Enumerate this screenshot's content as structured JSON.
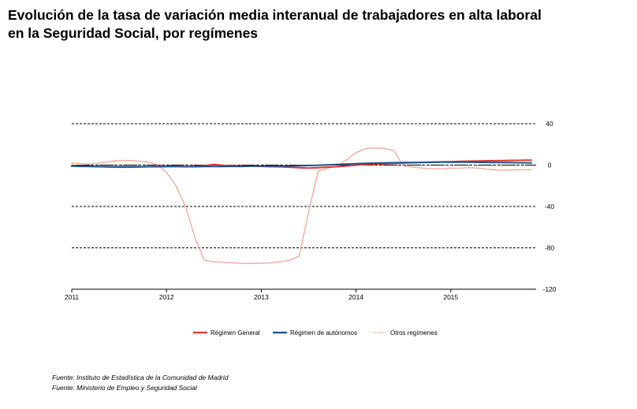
{
  "title_lines": [
    "Evolución de la tasa de variación media interanual de trabajadores en alta laboral",
    "en la Seguridad Social, por  regímenes"
  ],
  "sources": [
    "Fuente: Instituto de Estadística de la Comunidad de Madrid",
    "Fuente: Ministerio de Empleo y Seguridad Social"
  ],
  "chart_data": {
    "type": "line",
    "title": "",
    "xlabel": "",
    "ylabel": "",
    "x_tick_labels": [
      "2011",
      "2012",
      "2013",
      "2014",
      "2015"
    ],
    "x_range": [
      2011.0,
      2015.9
    ],
    "y_ticks": [
      40,
      0,
      -40,
      -80,
      -120
    ],
    "ylim": [
      -120,
      40
    ],
    "grid": "dashed horizontal",
    "legend_position": "bottom",
    "x": [
      2011.0,
      2011.1,
      2011.2,
      2011.3,
      2011.4,
      2011.5,
      2011.6,
      2011.7,
      2011.8,
      2011.9,
      2012.0,
      2012.1,
      2012.2,
      2012.3,
      2012.4,
      2012.5,
      2012.6,
      2012.7,
      2012.8,
      2012.9,
      2013.0,
      2013.1,
      2013.2,
      2013.3,
      2013.4,
      2013.5,
      2013.6,
      2013.7,
      2013.8,
      2013.9,
      2014.0,
      2014.1,
      2014.2,
      2014.3,
      2014.4,
      2014.5,
      2014.6,
      2014.7,
      2014.8,
      2014.9,
      2015.0,
      2015.1,
      2015.2,
      2015.3,
      2015.4,
      2015.5,
      2015.6,
      2015.7,
      2015.8,
      2015.85
    ],
    "series": [
      {
        "name": "Régimen General",
        "color": "#d9382e",
        "style": "solid",
        "values": [
          -0.5,
          -0.8,
          -1.2,
          -1.5,
          -1.8,
          -2.0,
          -2.0,
          -1.8,
          -1.5,
          -1.4,
          -1.3,
          -1.4,
          -1.5,
          -1.2,
          -0.5,
          0.5,
          -0.3,
          -0.5,
          -0.8,
          -1.0,
          -1.2,
          -1.5,
          -1.6,
          -2.0,
          -2.5,
          -2.8,
          -2.5,
          -2.0,
          -1.5,
          -0.8,
          0.0,
          0.5,
          1.0,
          1.3,
          1.7,
          2.0,
          2.3,
          2.6,
          2.9,
          3.1,
          3.3,
          3.6,
          3.8,
          4.0,
          4.2,
          4.3,
          4.5,
          4.6,
          4.7,
          4.8
        ]
      },
      {
        "name": "Régimen de autónomos",
        "color": "#1f4e8c",
        "style": "solid",
        "values": [
          -1.0,
          -1.2,
          -1.4,
          -1.5,
          -1.6,
          -1.6,
          -1.6,
          -1.6,
          -1.5,
          -1.5,
          -1.4,
          -1.4,
          -1.5,
          -1.5,
          -1.4,
          -1.3,
          -1.3,
          -1.2,
          -1.2,
          -1.1,
          -1.0,
          -1.0,
          -0.9,
          -0.8,
          -0.6,
          -0.4,
          -0.2,
          0.2,
          0.6,
          1.0,
          1.4,
          1.7,
          1.9,
          2.1,
          2.3,
          2.4,
          2.5,
          2.6,
          2.7,
          2.8,
          2.8,
          2.8,
          2.8,
          2.7,
          2.6,
          2.5,
          2.4,
          2.3,
          2.2,
          2.1
        ]
      },
      {
        "name": "Otros regímenes",
        "color": "#f0a08c",
        "style": "dotted",
        "values": [
          2.0,
          1.5,
          1.0,
          2.0,
          3.5,
          4.5,
          4.5,
          4.0,
          3.0,
          0.5,
          -7.0,
          -20.0,
          -40.0,
          -70.0,
          -92.0,
          -93.5,
          -94.0,
          -94.5,
          -95.0,
          -95.0,
          -95.0,
          -94.5,
          -93.5,
          -92.0,
          -88.0,
          -45.0,
          -6.0,
          -3.0,
          -1.0,
          5.0,
          12.0,
          16.0,
          16.5,
          16.0,
          14.0,
          -1.0,
          -2.0,
          -3.0,
          -3.5,
          -3.5,
          -3.0,
          -3.0,
          -2.5,
          -3.0,
          -4.0,
          -5.0,
          -5.0,
          -4.5,
          -4.5,
          -4.5
        ]
      }
    ]
  }
}
